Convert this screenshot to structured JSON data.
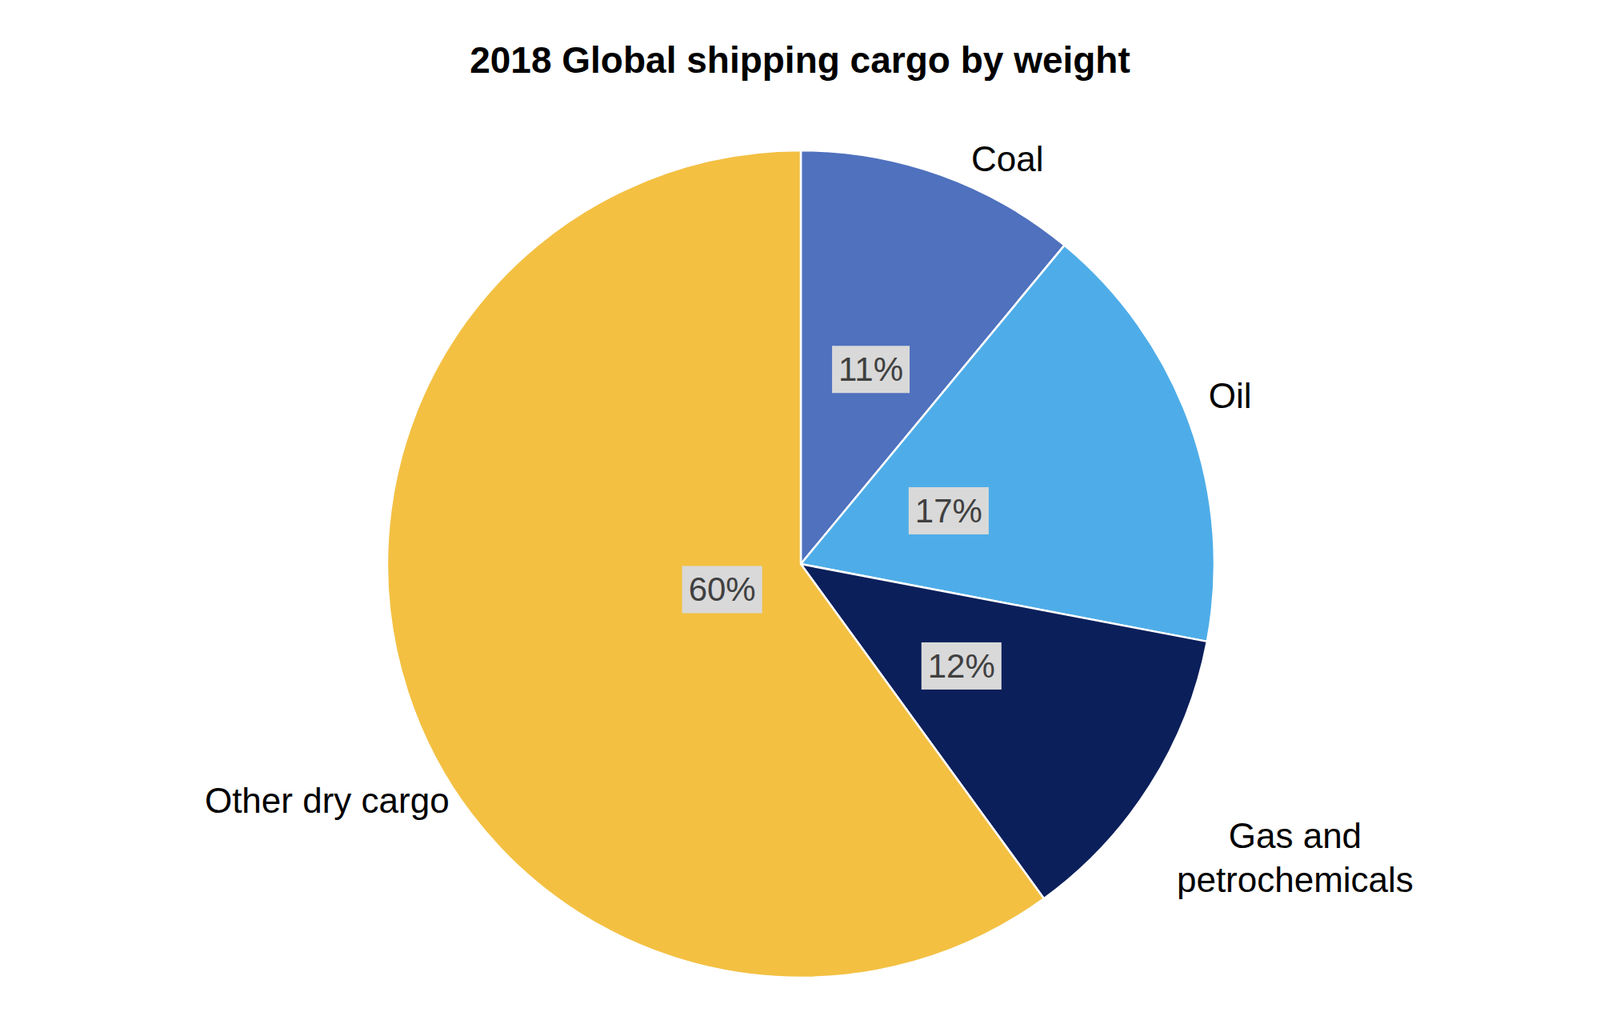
{
  "chart_data": {
    "type": "pie",
    "title": "2018 Global shipping cargo by weight",
    "categories": [
      "Coal",
      "Oil",
      "Gas and petrochemicals",
      "Other dry cargo"
    ],
    "values": [
      11,
      17,
      12,
      60
    ],
    "value_labels": [
      "11%",
      "17%",
      "12%",
      "60%"
    ],
    "colors": [
      "#4f71be",
      "#4eade8",
      "#0b1f5b",
      "#f3c042"
    ],
    "data_labels": true
  }
}
